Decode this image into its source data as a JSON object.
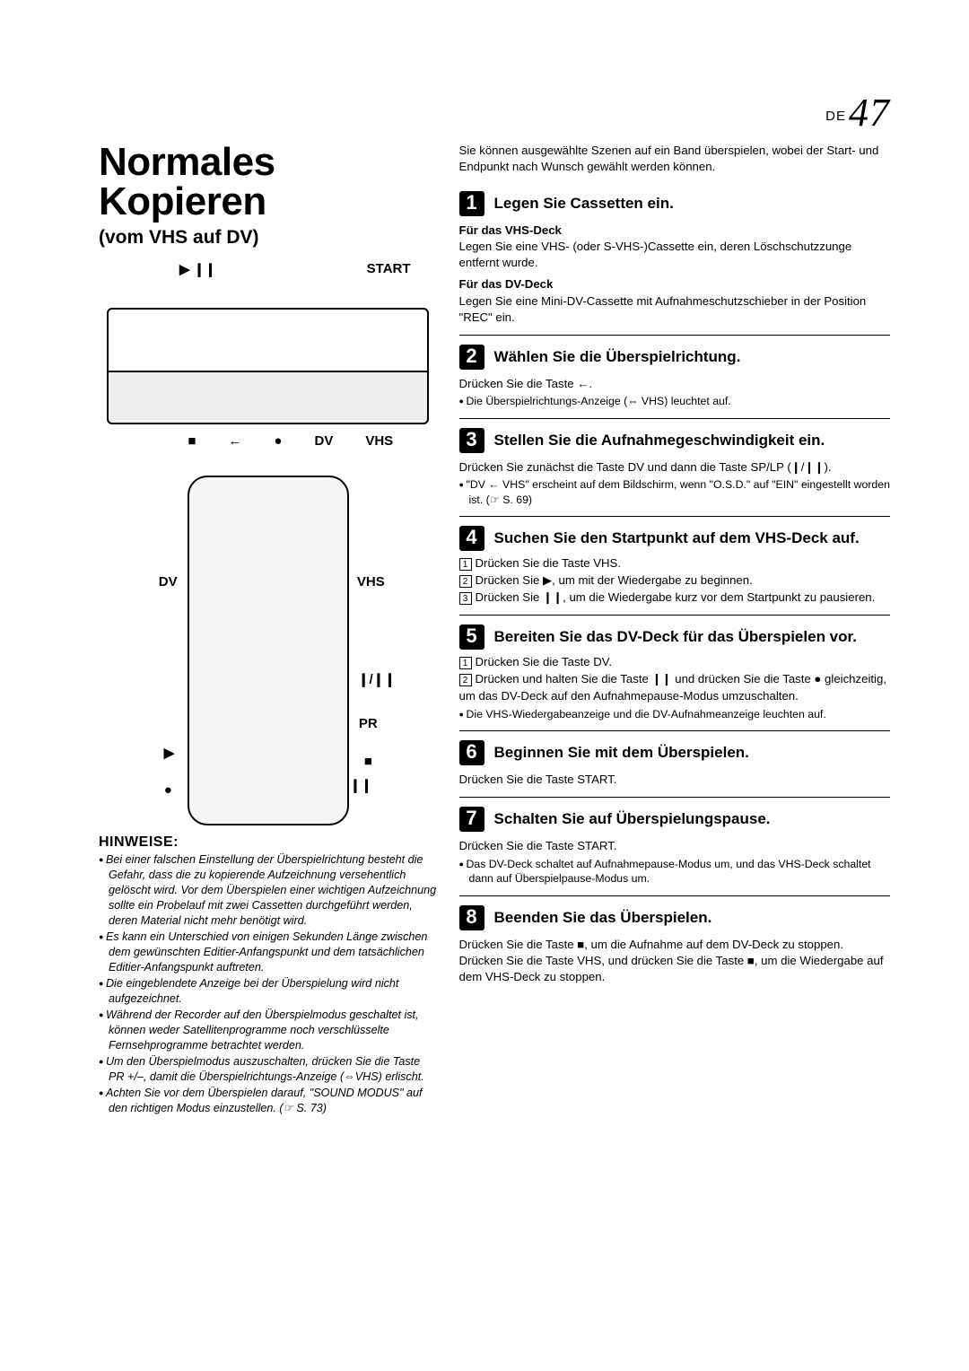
{
  "page": {
    "label": "DE",
    "number": "47"
  },
  "title": "Normales Kopieren",
  "subtitle": "(vom VHS auf DV)",
  "diagram": {
    "top": {
      "play_pause": "▶ ❙❙",
      "start": "START"
    },
    "bottom": {
      "stop": "■",
      "arrow": "←",
      "rec": "●",
      "dv": "DV",
      "vhs": "VHS"
    }
  },
  "remote": {
    "dv": "DV",
    "vhs": "VHS",
    "splp": "❙/❙❙",
    "pr": "PR",
    "play": "▶",
    "stop": "■",
    "pause": "❙❙",
    "rec": "●"
  },
  "hinweise": {
    "heading": "HINWEISE:",
    "items": [
      "Bei einer falschen Einstellung der Überspielrichtung besteht die Gefahr, dass die zu kopierende Aufzeichnung versehentlich gelöscht wird. Vor dem Überspielen einer wichtigen Aufzeichnung sollte ein Probelauf mit zwei Cassetten durchgeführt werden, deren Material nicht mehr benötigt wird.",
      "Es kann ein Unterschied von einigen Sekunden Länge zwischen dem gewünschten Editier-Anfangspunkt und dem tatsächlichen Editier-Anfangspunkt auftreten.",
      "Die eingeblendete Anzeige bei der Überspielung wird nicht aufgezeichnet.",
      "Während der Recorder auf den Überspielmodus geschaltet ist, können weder Satellitenprogramme noch verschlüsselte Fernsehprogramme betrachtet werden.",
      "Um den Überspielmodus auszuschalten, drücken Sie die Taste PR +/–, damit die Überspielrichtungs-Anzeige (⇔VHS) erlischt.",
      "Achten Sie vor dem Überspielen darauf, \"SOUND MODUS\" auf den richtigen Modus einzustellen. (☞ S. 73)"
    ]
  },
  "intro": "Sie können ausgewählte Szenen auf ein Band überspielen, wobei der Start- und Endpunkt nach Wunsch gewählt werden können.",
  "steps": [
    {
      "n": "1",
      "title": "Legen Sie Cassetten ein.",
      "subs": [
        {
          "h": "Für das VHS-Deck",
          "t": "Legen Sie eine VHS- (oder S-VHS-)Cassette ein, deren Löschschutzzunge entfernt wurde."
        },
        {
          "h": "Für das DV-Deck",
          "t": "Legen Sie eine Mini-DV-Cassette mit Aufnahmeschutzschieber in der Position \"REC\" ein."
        }
      ]
    },
    {
      "n": "2",
      "title": "Wählen Sie die Überspielrichtung.",
      "body": "Drücken Sie die Taste ←.",
      "bul": [
        "Die Überspielrichtungs-Anzeige (⇔ VHS) leuchtet auf."
      ]
    },
    {
      "n": "3",
      "title": "Stellen Sie die Aufnahmegeschwindigkeit ein.",
      "body": "Drücken Sie zunächst die Taste DV und dann die Taste SP/LP (❙/❙❙).",
      "bul": [
        "\"DV ← VHS\" erscheint auf dem Bildschirm, wenn \"O.S.D.\" auf \"EIN\" eingestellt worden ist. (☞ S. 69)"
      ]
    },
    {
      "n": "4",
      "title": "Suchen Sie den Startpunkt auf dem VHS-Deck auf.",
      "enum": [
        "Drücken Sie die Taste VHS.",
        "Drücken Sie ▶, um mit der Wiedergabe zu beginnen.",
        "Drücken Sie ❙❙, um die Wiedergabe kurz vor dem Startpunkt zu pausieren."
      ]
    },
    {
      "n": "5",
      "title": "Bereiten Sie das DV-Deck für das Überspielen vor.",
      "enum": [
        "Drücken Sie die Taste DV.",
        "Drücken und halten Sie die Taste ❙❙ und drücken Sie die Taste ● gleichzeitig, um das DV-Deck auf den Aufnahmepause-Modus umzuschalten."
      ],
      "bul": [
        "Die VHS-Wiedergabeanzeige und die DV-Aufnahmeanzeige leuchten auf."
      ]
    },
    {
      "n": "6",
      "title": "Beginnen Sie mit dem Überspielen.",
      "body": "Drücken Sie die Taste START."
    },
    {
      "n": "7",
      "title": "Schalten Sie auf Überspielungspause.",
      "body": "Drücken Sie die Taste START.",
      "bul": [
        "Das DV-Deck schaltet auf Aufnahmepause-Modus um, und das VHS-Deck schaltet dann auf Überspielpause-Modus um."
      ]
    },
    {
      "n": "8",
      "title": "Beenden Sie das Überspielen.",
      "body": "Drücken Sie die Taste ■, um die Aufnahme auf dem DV-Deck zu stoppen. Drücken Sie die Taste VHS, und drücken Sie die Taste ■, um die Wiedergabe auf dem VHS-Deck zu stoppen."
    }
  ]
}
